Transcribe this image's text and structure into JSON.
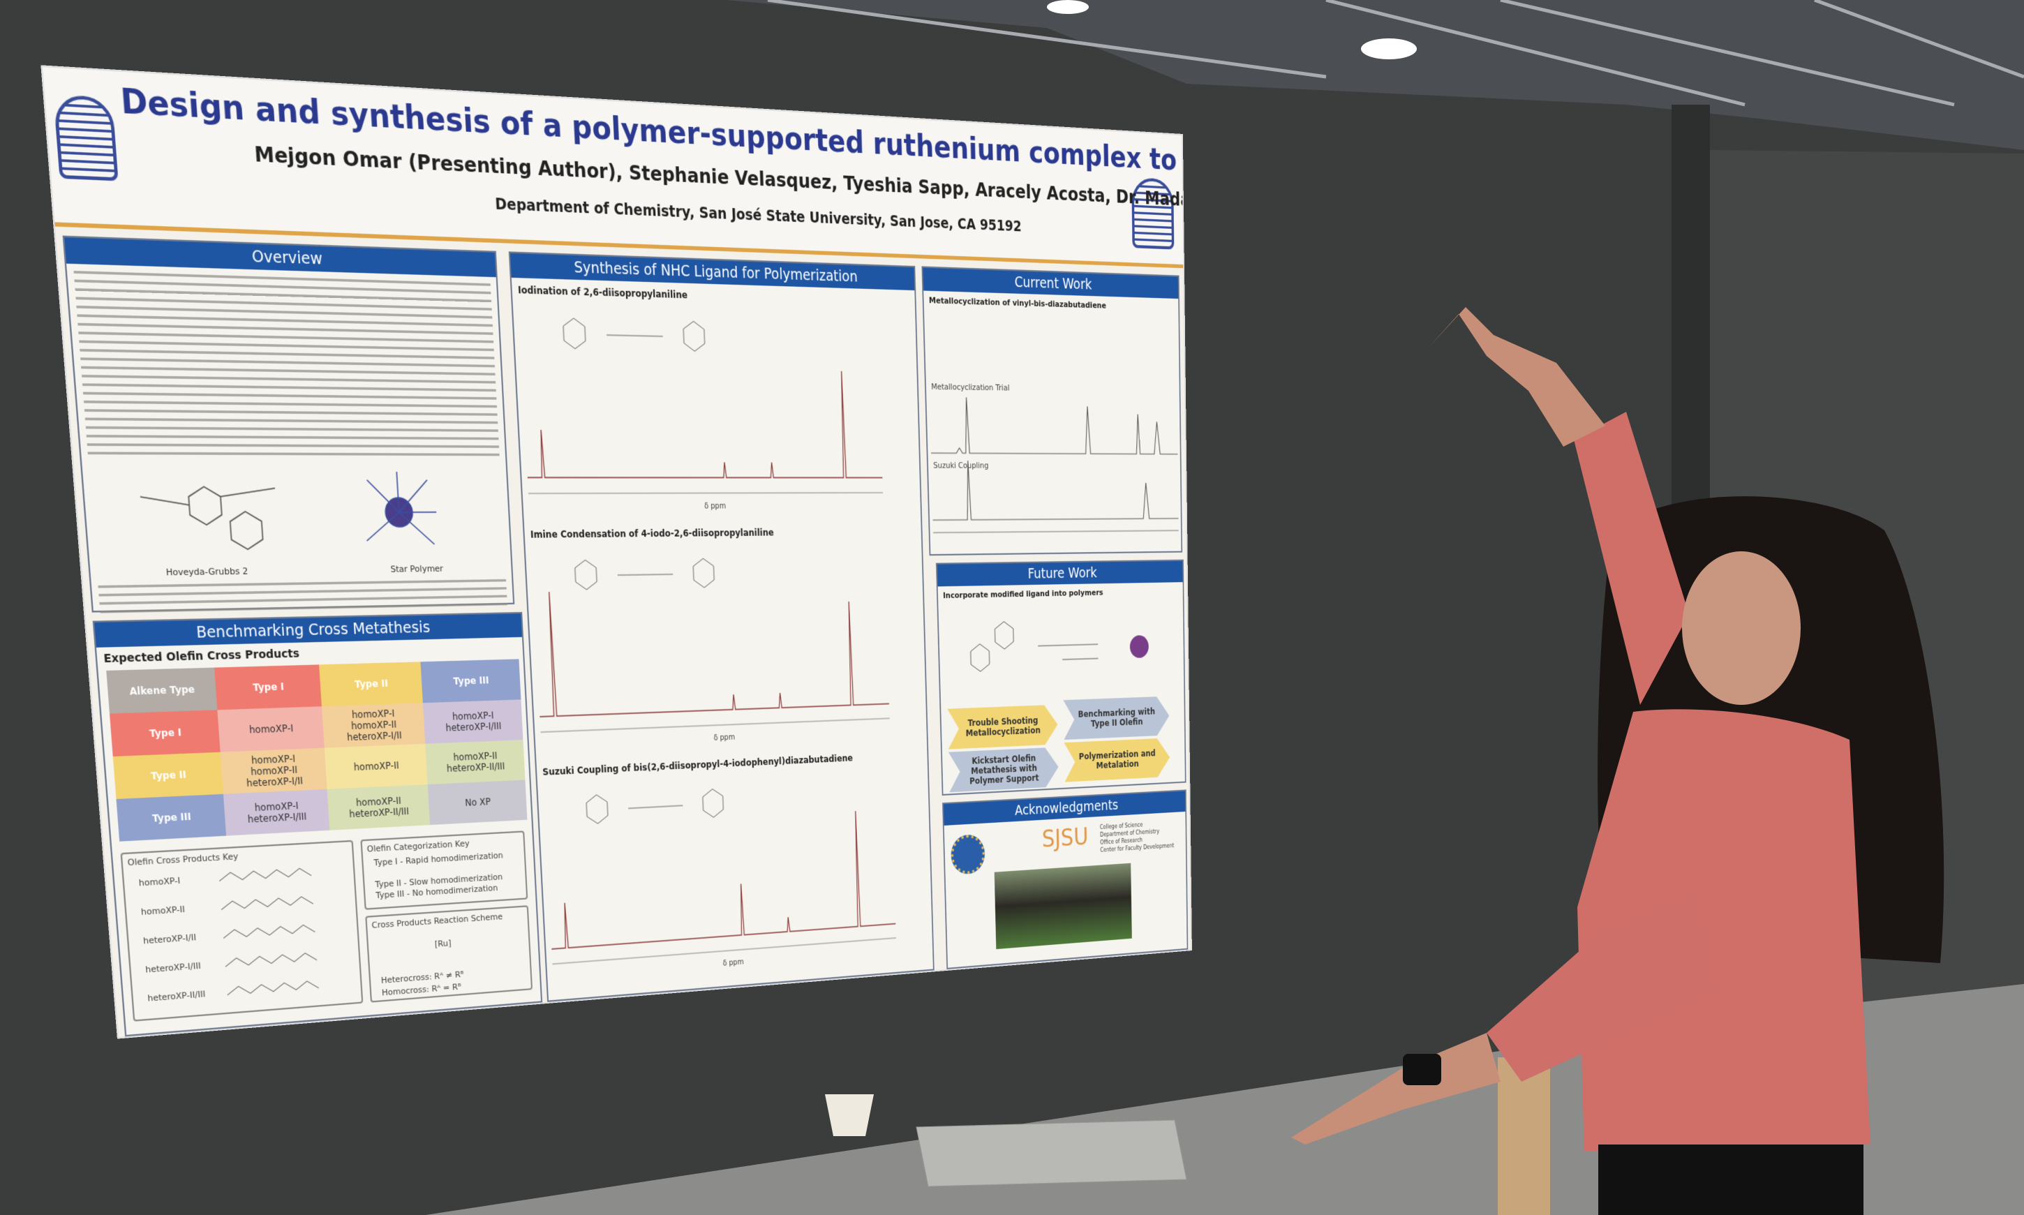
{
  "scene": {
    "wall_color": "#3b3c3c",
    "floor_color": "#8c8c8a",
    "blouse_color": "#d06e68",
    "hair_color": "#1a1412"
  },
  "poster": {
    "title": "Design and synthesis of a polymer-supported ruthenium complex to enhance olefin cross metathesis",
    "authors": "Mejgon Omar (Presenting Author), Stephanie Velasquez, Tyeshia Sapp, Aracely Acosta, Dr. Madalyn R. Radlauer",
    "department": "Department of Chemistry, San José State University, San Jose, CA 95192",
    "accent": "#1f56a3",
    "overview": {
      "heading": "Overview",
      "structure_labels": [
        "Hoveyda-Grubbs 2",
        "Star Polymer"
      ]
    },
    "benchmarking": {
      "heading": "Benchmarking Cross Metathesis",
      "subheading": "Expected Olefin Cross Products",
      "table": [
        [
          "Alkene Type",
          "Type I",
          "Type II",
          "Type III"
        ],
        [
          "Type I",
          "homoXP-I",
          "homoXP-I\nhomoXP-II\nheteroXP-I/II",
          "homoXP-I\nheteroXP-I/III"
        ],
        [
          "Type II",
          "homoXP-I\nhomoXP-II\nheteroXP-I/II",
          "homoXP-II",
          "homoXP-II\nheteroXP-II/III"
        ],
        [
          "Type III",
          "homoXP-I\nheteroXP-I/III",
          "homoXP-II\nheteroXP-II/III",
          "No XP"
        ]
      ],
      "products_key": {
        "heading": "Olefin Cross Products Key",
        "items": [
          "homoXP-I",
          "homoXP-II",
          "heteroXP-I/II",
          "heteroXP-I/III",
          "heteroXP-II/III"
        ]
      },
      "categorization_key": {
        "heading": "Olefin Categorization Key",
        "items": [
          "Type I - Rapid homodimerization",
          "Type II - Slow homodimerization",
          "Type III - No homodimerization"
        ]
      },
      "scheme": {
        "heading": "Cross Products Reaction Scheme",
        "catalyst": "[Ru]",
        "heterocross": "Heterocross: Rᴬ ≠ Rᴮ",
        "homocross": "Homocross: Rᴬ = Rᴮ"
      }
    },
    "synthesis": {
      "heading": "Synthesis of NHC Ligand for Polymerization",
      "steps": [
        "Iodination of 2,6-diisopropylaniline",
        "Imine Condensation of 4-iodo-2,6-diisopropylaniline",
        "Suzuki Coupling of bis(2,6-diisopropyl-4-iodophenyl)diazabutadiene"
      ],
      "axis_label": "δ ppm"
    },
    "current_work": {
      "heading": "Current Work",
      "subheading": "Metallocyclization of vinyl-bis-diazabutadiene",
      "spectra": [
        "Metallocyclization Trial",
        "Suzuki Coupling"
      ]
    },
    "future_work": {
      "heading": "Future Work",
      "subheading": "Incorporate modified ligand into polymers",
      "steps": [
        "Trouble Shooting Metallocyclization",
        "Benchmarking with Type II Olefin",
        "Kickstart Olefin Metathesis with Polymer Support",
        "Polymerization and Metalation"
      ]
    },
    "acknowledgments": {
      "heading": "Acknowledgments",
      "sjsu": "SJSU",
      "sjsu_units": [
        "College of Science",
        "Department of Chemistry",
        "Office of Research",
        "Center for Faculty Development"
      ]
    }
  }
}
